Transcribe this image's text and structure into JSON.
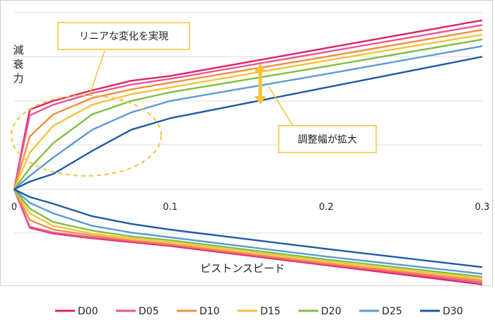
{
  "chart_data": {
    "type": "line",
    "xlabel": "ピストンスピード",
    "ylabel": "減衰力",
    "x_ticks": [
      "0",
      "0.1",
      "0.2",
      "0.3"
    ],
    "xlim": [
      0,
      0.3
    ],
    "grid": true,
    "legend_position": "bottom",
    "annotations": {
      "linear": "リニアな変化を実現",
      "range": "調整幅が拡大"
    },
    "series": [
      {
        "name": "D00",
        "color": "#e0245e",
        "x": [
          0,
          0.01,
          0.025,
          0.05,
          0.075,
          0.1,
          0.2,
          0.3
        ],
        "upper": [
          0,
          0.83,
          0.92,
          1.03,
          1.13,
          1.18,
          1.47,
          1.76
        ],
        "lower": [
          0,
          -0.4,
          -0.46,
          -0.51,
          -0.55,
          -0.59,
          -0.79,
          -0.99
        ]
      },
      {
        "name": "D05",
        "color": "#e8559a",
        "x": [
          0,
          0.01,
          0.025,
          0.05,
          0.075,
          0.1,
          0.2,
          0.3
        ],
        "upper": [
          0,
          0.77,
          0.88,
          1.0,
          1.09,
          1.15,
          1.43,
          1.71
        ],
        "lower": [
          0,
          -0.39,
          -0.45,
          -0.5,
          -0.54,
          -0.58,
          -0.78,
          -0.97
        ]
      },
      {
        "name": "D10",
        "color": "#f0903a",
        "x": [
          0,
          0.01,
          0.025,
          0.05,
          0.075,
          0.1,
          0.2,
          0.3
        ],
        "upper": [
          0,
          0.55,
          0.78,
          0.95,
          1.04,
          1.11,
          1.38,
          1.66
        ],
        "lower": [
          0,
          -0.32,
          -0.42,
          -0.48,
          -0.53,
          -0.57,
          -0.77,
          -0.95
        ]
      },
      {
        "name": "D15",
        "color": "#f5c23a",
        "x": [
          0,
          0.01,
          0.025,
          0.05,
          0.075,
          0.1,
          0.2,
          0.3
        ],
        "upper": [
          0,
          0.38,
          0.66,
          0.88,
          0.99,
          1.06,
          1.34,
          1.61
        ],
        "lower": [
          0,
          -0.25,
          -0.38,
          -0.46,
          -0.51,
          -0.55,
          -0.75,
          -0.93
        ]
      },
      {
        "name": "D20",
        "color": "#7ec040",
        "x": [
          0,
          0.01,
          0.025,
          0.05,
          0.075,
          0.1,
          0.2,
          0.3
        ],
        "upper": [
          0,
          0.22,
          0.48,
          0.78,
          0.92,
          1.01,
          1.28,
          1.56
        ],
        "lower": [
          0,
          -0.2,
          -0.34,
          -0.43,
          -0.49,
          -0.53,
          -0.73,
          -0.91
        ]
      },
      {
        "name": "D25",
        "color": "#5b9bd5",
        "x": [
          0,
          0.01,
          0.025,
          0.05,
          0.075,
          0.1,
          0.2,
          0.3
        ],
        "upper": [
          0,
          0.14,
          0.33,
          0.62,
          0.8,
          0.92,
          1.2,
          1.49
        ],
        "lower": [
          0,
          -0.14,
          -0.25,
          -0.38,
          -0.45,
          -0.5,
          -0.7,
          -0.88
        ]
      },
      {
        "name": "D30",
        "color": "#1f5aa6",
        "x": [
          0,
          0.01,
          0.025,
          0.05,
          0.075,
          0.1,
          0.2,
          0.3
        ],
        "upper": [
          0,
          0.08,
          0.16,
          0.4,
          0.62,
          0.74,
          1.06,
          1.38
        ],
        "lower": [
          0,
          -0.08,
          -0.15,
          -0.28,
          -0.36,
          -0.42,
          -0.62,
          -0.81
        ]
      }
    ]
  }
}
